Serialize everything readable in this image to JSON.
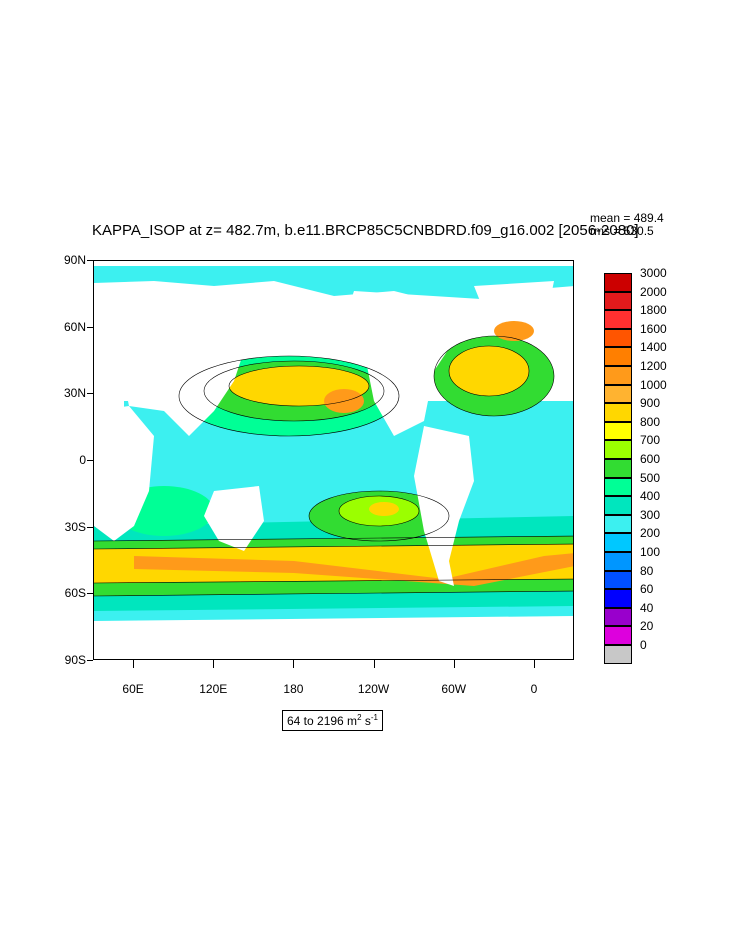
{
  "title": "KAPPA_ISOP at z= 482.7m, b.e11.BRCP85C5CNBDRD.f09_g16.002 [2056-2080]",
  "stats": {
    "mean": "mean = 489.4",
    "rms": "rms = 530.5"
  },
  "range_label": {
    "text": "64 to 2196 m",
    "exp1": "2",
    "mid": " s",
    "exp2": "-1"
  },
  "y_ticks": [
    "90N",
    "60N",
    "30N",
    "0",
    "30S",
    "60S",
    "90S"
  ],
  "x_ticks": [
    "60E",
    "120E",
    "180",
    "120W",
    "60W",
    "0"
  ],
  "colorbar": {
    "levels": [
      "3000",
      "2000",
      "1800",
      "1600",
      "1400",
      "1200",
      "1000",
      "900",
      "800",
      "700",
      "600",
      "500",
      "400",
      "300",
      "200",
      "100",
      "80",
      "60",
      "40",
      "20",
      "0"
    ],
    "colors": [
      "#cc0000",
      "#e31a1c",
      "#ff3030",
      "#ff5500",
      "#ff7f00",
      "#ff9a1a",
      "#ffb330",
      "#ffd700",
      "#ffff00",
      "#9bff00",
      "#32dc32",
      "#00ff96",
      "#00e6be",
      "#3cf0f0",
      "#00c8ff",
      "#0096ff",
      "#0050ff",
      "#0000ff",
      "#9900cc",
      "#dd00dd",
      "#c8c8c8"
    ]
  },
  "chart_data": {
    "type": "map",
    "title": "KAPPA_ISOP at z= 482.7m, b.e11.BRCP85C5CNBDRD.f09_g16.002 [2056-2080]",
    "variable": "KAPPA_ISOP",
    "units": "m^2 s^-1",
    "min": 64,
    "max": 2196,
    "mean": 489.4,
    "rms": 530.5,
    "lon_range": [
      30,
      390
    ],
    "lat_range": [
      -90,
      90
    ],
    "contour_levels": [
      20,
      40,
      60,
      80,
      100,
      200,
      300,
      400,
      500,
      600,
      700,
      800,
      900,
      1000,
      1200,
      1400,
      1600,
      1800,
      2000,
      3000
    ]
  }
}
